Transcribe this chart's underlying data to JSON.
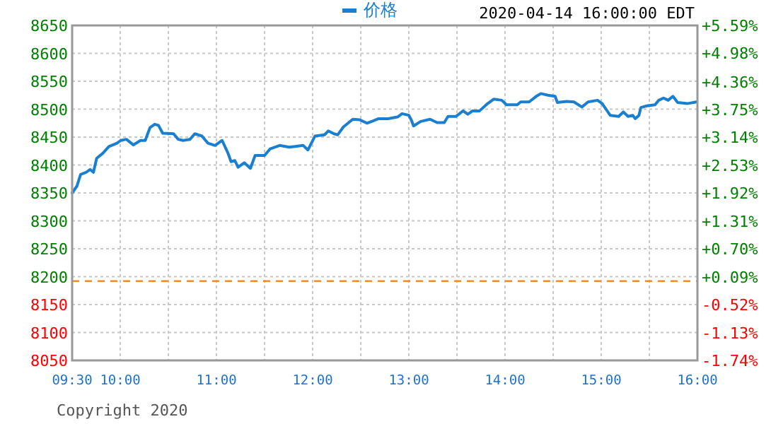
{
  "chart_data": {
    "type": "line",
    "x": [
      9.5,
      9.549,
      9.588,
      9.647,
      9.686,
      9.721,
      9.755,
      9.819,
      9.882,
      9.966,
      10.005,
      10.064,
      10.137,
      10.211,
      10.26,
      10.309,
      10.358,
      10.397,
      10.441,
      10.554,
      10.603,
      10.652,
      10.725,
      10.775,
      10.848,
      10.912,
      10.985,
      11.059,
      11.118,
      11.152,
      11.191,
      11.225,
      11.289,
      11.353,
      11.402,
      11.5,
      11.559,
      11.657,
      11.755,
      11.804,
      11.902,
      11.951,
      12.025,
      12.123,
      12.162,
      12.221,
      12.26,
      12.319,
      12.417,
      12.49,
      12.564,
      12.627,
      12.686,
      12.784,
      12.882,
      12.93,
      13.0,
      13.025,
      13.049,
      13.123,
      13.221,
      13.294,
      13.368,
      13.407,
      13.49,
      13.564,
      13.613,
      13.662,
      13.735,
      13.819,
      13.882,
      13.966,
      14.015,
      14.127,
      14.162,
      14.25,
      14.324,
      14.373,
      14.446,
      14.52,
      14.544,
      14.642,
      14.716,
      14.799,
      14.863,
      14.961,
      15.01,
      15.093,
      15.181,
      15.23,
      15.279,
      15.328,
      15.353,
      15.392,
      15.412,
      15.475,
      15.559,
      15.598,
      15.647,
      15.696,
      15.745,
      15.794,
      15.892,
      15.99
    ],
    "series": [
      {
        "name": "价格",
        "color": "#1a7fd0",
        "values": [
          8350,
          8362,
          8383,
          8387,
          8392,
          8387,
          8412,
          8421,
          8433,
          8439,
          8444,
          8446,
          8436,
          8444,
          8444,
          8467,
          8473,
          8471,
          8457,
          8456,
          8446,
          8444,
          8446,
          8456,
          8452,
          8439,
          8435,
          8444,
          8422,
          8406,
          8408,
          8396,
          8404,
          8394,
          8417,
          8417,
          8429,
          8435,
          8432,
          8433,
          8435,
          8427,
          8452,
          8454,
          8461,
          8456,
          8454,
          8468,
          8482,
          8481,
          8475,
          8479,
          8483,
          8483,
          8486,
          8492,
          8489,
          8481,
          8470,
          8478,
          8482,
          8476,
          8476,
          8487,
          8487,
          8497,
          8491,
          8497,
          8497,
          8510,
          8518,
          8516,
          8508,
          8508,
          8513,
          8513,
          8523,
          8528,
          8525,
          8523,
          8512,
          8514,
          8513,
          8504,
          8513,
          8516,
          8510,
          8489,
          8487,
          8495,
          8487,
          8489,
          8483,
          8489,
          8503,
          8506,
          8508,
          8516,
          8520,
          8516,
          8523,
          8512,
          8510,
          8513
        ]
      }
    ],
    "xlim": [
      9.5,
      16
    ],
    "xticks": [
      {
        "value": 9.5,
        "label": "09:30"
      },
      {
        "value": 10,
        "label": "10:00"
      },
      {
        "value": 10.5,
        "label": null
      },
      {
        "value": 11,
        "label": "11:00"
      },
      {
        "value": 11.5,
        "label": null
      },
      {
        "value": 12,
        "label": "12:00"
      },
      {
        "value": 12.5,
        "label": null
      },
      {
        "value": 13,
        "label": "13:00"
      },
      {
        "value": 13.5,
        "label": null
      },
      {
        "value": 14,
        "label": "14:00"
      },
      {
        "value": 14.5,
        "label": null
      },
      {
        "value": 15,
        "label": "15:00"
      },
      {
        "value": 15.5,
        "label": null
      },
      {
        "value": 16,
        "label": "16:00"
      }
    ],
    "ylim": [
      8050,
      8650
    ],
    "yticks": [
      8050,
      8100,
      8150,
      8200,
      8250,
      8300,
      8350,
      8400,
      8450,
      8500,
      8550,
      8600,
      8650
    ],
    "y2lim": [
      -1.74,
      5.59
    ],
    "y2ticks": [
      {
        "value": -1.74,
        "label": "-1.74%"
      },
      {
        "value": -1.13,
        "label": "-1.13%"
      },
      {
        "value": -0.52,
        "label": "-0.52%"
      },
      {
        "value": 0.09,
        "label": "+0.09%"
      },
      {
        "value": 0.7,
        "label": "+0.70%"
      },
      {
        "value": 1.31,
        "label": "+1.31%"
      },
      {
        "value": 1.92,
        "label": "+1.92%"
      },
      {
        "value": 2.53,
        "label": "+2.53%"
      },
      {
        "value": 3.14,
        "label": "+3.14%"
      },
      {
        "value": 3.75,
        "label": "+3.75%"
      },
      {
        "value": 4.36,
        "label": "+4.36%"
      },
      {
        "value": 4.98,
        "label": "+4.98%"
      },
      {
        "value": 5.59,
        "label": "+5.59%"
      }
    ],
    "ref_lines": [
      {
        "axis": "y",
        "value": 8192,
        "color": "#ff8c1a",
        "line_style": "dashed"
      }
    ],
    "grid": true,
    "legend": "top",
    "annotations": [
      "2020-04-14 16:00:00 EDT",
      "Copyright 2020"
    ]
  }
}
